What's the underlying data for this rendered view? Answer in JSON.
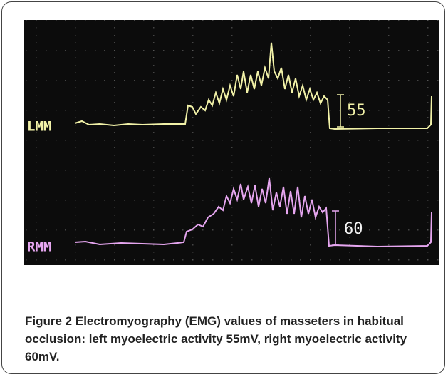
{
  "figure": {
    "traces": [
      {
        "name": "LMM",
        "amplitude": 55
      },
      {
        "name": "RMM",
        "amplitude": 60
      }
    ],
    "caption": {
      "label": "Figure 2",
      "text": "Electromyography (EMG) values of masseters in habitual occlusion: left myoelectric activity 55mV, right myoelectric activity 60mV."
    }
  }
}
